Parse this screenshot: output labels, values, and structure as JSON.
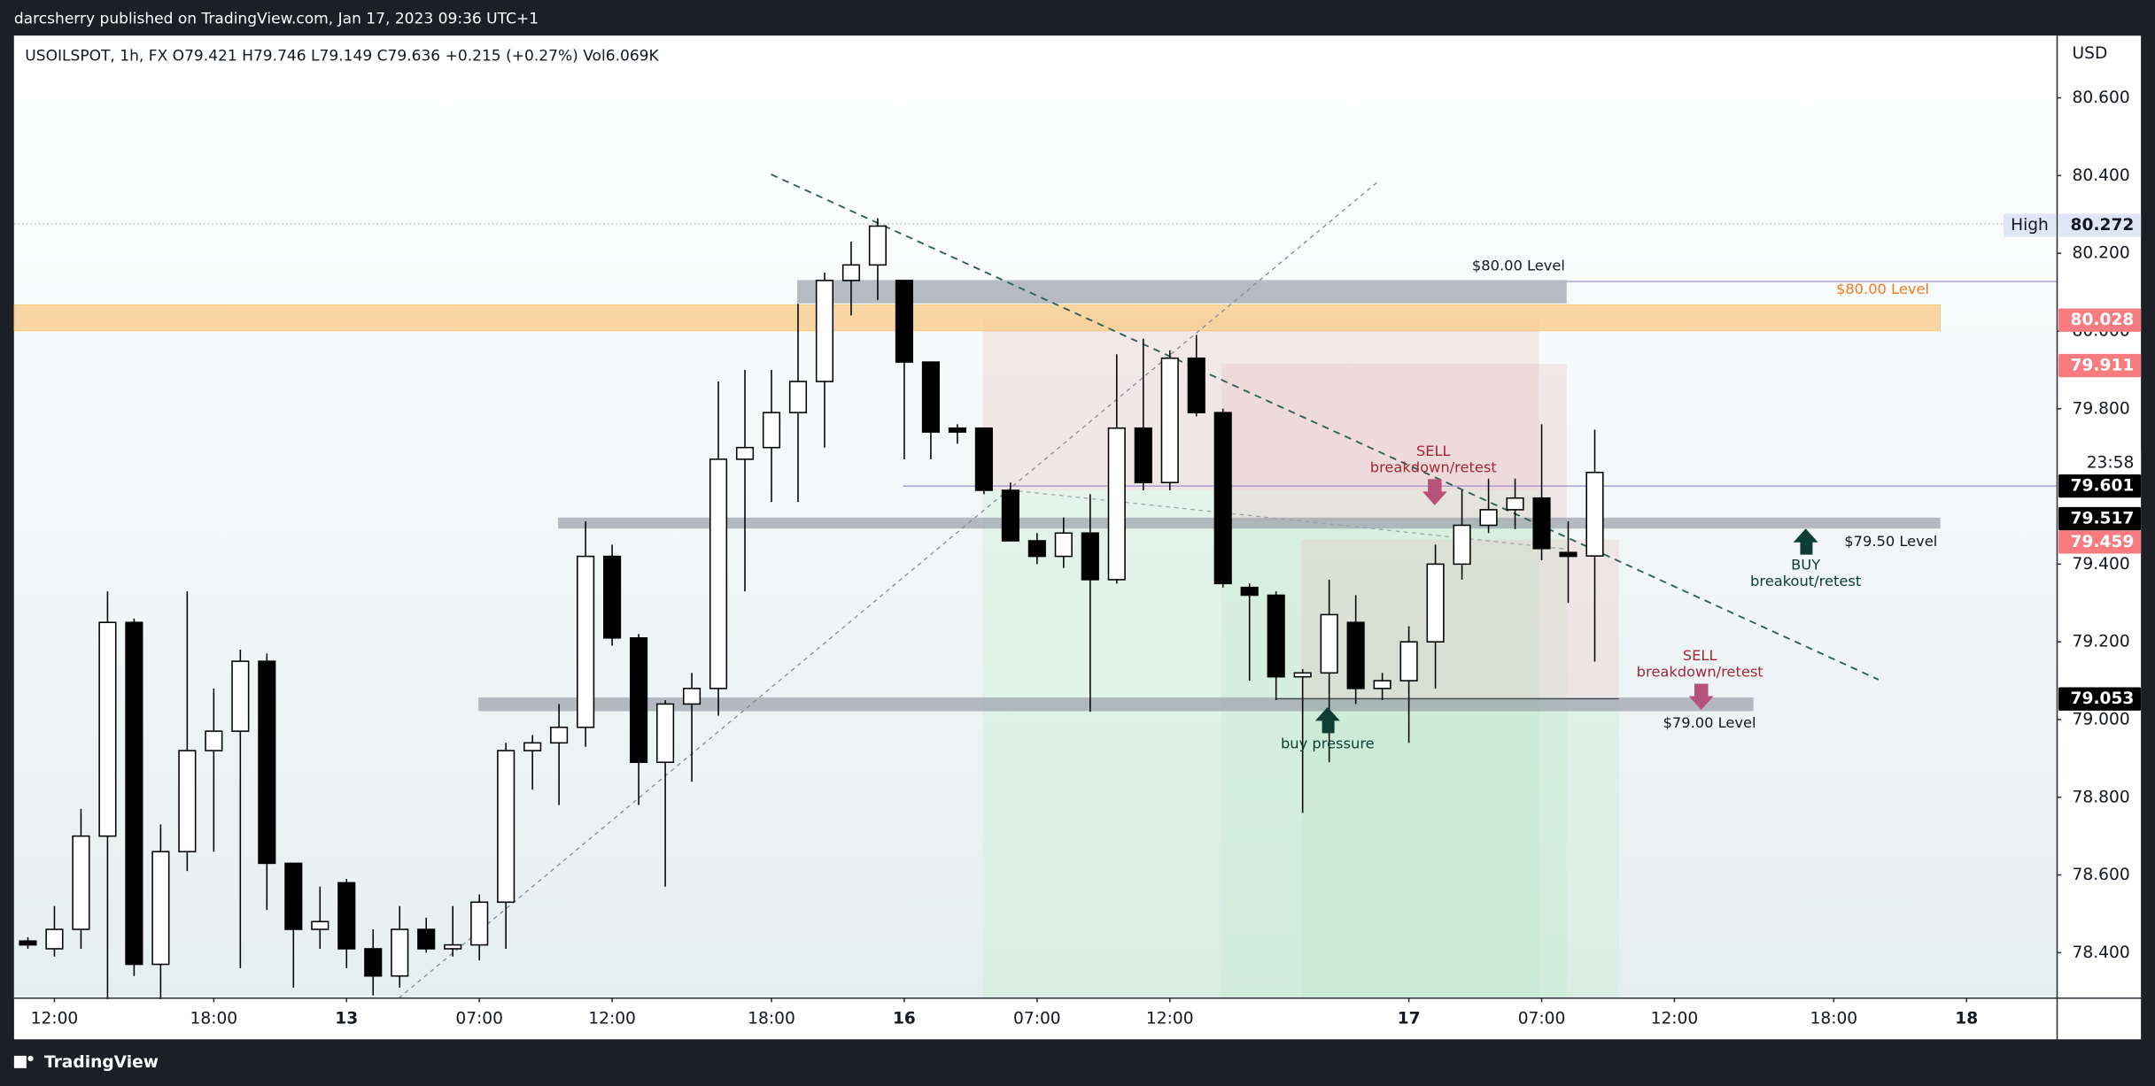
{
  "header": {
    "text": "darcsherry published on TradingView.com, Jan 17, 2023 09:36 UTC+1"
  },
  "legend": {
    "text": "USOILSPOT, 1h, FX  O79.421 H79.746 L79.149 C79.636 +0.215 (+0.27%) Vol6.069K"
  },
  "footer": {
    "brand": "TradingView"
  },
  "chart_data": {
    "type": "candlestick",
    "ylabel": "USD",
    "open": [
      78.43,
      78.41,
      78.46,
      78.7,
      79.25,
      78.37,
      78.66,
      78.92,
      78.97,
      79.15,
      78.63,
      78.46,
      78.58,
      78.41,
      78.34,
      78.46,
      78.41,
      78.42,
      78.53,
      78.92,
      78.94,
      78.98,
      79.42,
      79.21,
      78.89,
      79.04,
      79.08,
      79.67,
      79.7,
      79.79,
      79.87,
      80.13,
      80.17,
      80.13,
      79.92,
      79.75,
      79.75,
      79.59,
      79.46,
      79.42,
      79.48,
      79.36,
      79.75,
      79.61,
      79.93,
      79.79,
      79.34,
      79.32,
      79.11,
      79.12,
      79.25,
      79.08,
      79.1,
      79.2,
      79.4,
      79.5,
      79.54,
      79.57,
      79.43,
      79.421
    ],
    "high": [
      78.44,
      78.52,
      78.77,
      79.33,
      79.26,
      78.73,
      79.33,
      79.08,
      79.18,
      79.17,
      78.63,
      78.57,
      78.59,
      78.46,
      78.52,
      78.49,
      78.52,
      78.55,
      78.94,
      78.96,
      79.04,
      79.51,
      79.45,
      79.22,
      79.05,
      79.12,
      79.87,
      79.9,
      79.9,
      80.07,
      80.15,
      80.23,
      80.29,
      80.13,
      79.92,
      79.76,
      79.75,
      79.61,
      79.48,
      79.52,
      79.58,
      79.94,
      79.98,
      79.95,
      79.99,
      79.8,
      79.35,
      79.33,
      79.13,
      79.36,
      79.32,
      79.12,
      79.24,
      79.45,
      79.59,
      79.62,
      79.62,
      79.76,
      79.51,
      79.746
    ],
    "low": [
      78.41,
      78.39,
      78.41,
      78.28,
      78.34,
      78.28,
      78.61,
      78.66,
      78.36,
      78.51,
      78.31,
      78.41,
      78.36,
      78.29,
      78.31,
      78.4,
      78.39,
      78.38,
      78.41,
      78.82,
      78.78,
      78.93,
      79.19,
      78.78,
      78.57,
      78.84,
      79.01,
      79.33,
      79.56,
      79.56,
      79.7,
      80.04,
      80.08,
      79.67,
      79.67,
      79.71,
      79.58,
      79.46,
      79.4,
      79.39,
      79.02,
      79.35,
      79.59,
      79.59,
      79.78,
      79.34,
      79.1,
      79.05,
      78.76,
      78.89,
      79.04,
      79.05,
      78.94,
      79.08,
      79.36,
      79.48,
      79.49,
      79.41,
      79.3,
      79.149
    ],
    "close": [
      78.42,
      78.46,
      78.7,
      79.25,
      78.37,
      78.66,
      78.92,
      78.97,
      79.15,
      78.63,
      78.46,
      78.48,
      78.41,
      78.34,
      78.46,
      78.41,
      78.42,
      78.53,
      78.92,
      78.94,
      78.98,
      79.42,
      79.21,
      78.89,
      79.04,
      79.08,
      79.67,
      79.7,
      79.79,
      79.87,
      80.13,
      80.17,
      80.27,
      79.92,
      79.74,
      79.74,
      79.59,
      79.46,
      79.42,
      79.48,
      79.36,
      79.75,
      79.61,
      79.93,
      79.79,
      79.35,
      79.32,
      79.11,
      79.12,
      79.27,
      79.08,
      79.1,
      79.2,
      79.4,
      79.5,
      79.54,
      79.57,
      79.44,
      79.42,
      79.636
    ],
    "up_color": "#ffffff",
    "down_color": "#000000",
    "xlim": [
      -0.52,
      76.41
    ],
    "xticks": [
      {
        "value": 1,
        "label": "12:00"
      },
      {
        "value": 7,
        "label": "18:00"
      },
      {
        "value": 12,
        "label": "13"
      },
      {
        "value": 17,
        "label": "07:00"
      },
      {
        "value": 22,
        "label": "12:00"
      },
      {
        "value": 28,
        "label": "18:00"
      },
      {
        "value": 33,
        "label": "16"
      },
      {
        "value": 38,
        "label": "07:00"
      },
      {
        "value": 43,
        "label": "12:00"
      },
      {
        "value": 52,
        "label": "17"
      },
      {
        "value": 57,
        "label": "07:00"
      },
      {
        "value": 62,
        "label": "12:00"
      },
      {
        "value": 68,
        "label": "18:00"
      },
      {
        "value": 73,
        "label": "18"
      }
    ],
    "ylim": [
      78.283,
      80.76
    ],
    "yticks": [
      {
        "value": 78.4,
        "label": "78.400"
      },
      {
        "value": 78.6,
        "label": "78.600"
      },
      {
        "value": 78.8,
        "label": "78.800"
      },
      {
        "value": 79,
        "label": "79.000"
      },
      {
        "value": 79.2,
        "label": "79.200"
      },
      {
        "value": 79.4,
        "label": "79.400"
      },
      {
        "value": 79.8,
        "label": "79.800"
      },
      {
        "value": 80,
        "label": "80.000"
      },
      {
        "value": 80.2,
        "label": "80.200"
      },
      {
        "value": 80.4,
        "label": "80.400"
      },
      {
        "value": 80.6,
        "label": "80.600"
      }
    ],
    "price_tags": [
      {
        "name": "High",
        "value": 80.272,
        "color": "#dfe6f5",
        "text_color": "#131722"
      },
      {
        "value": 80.028,
        "color": "#f77c80",
        "text_color": "#ffffff"
      },
      {
        "value": 79.911,
        "color": "#f77c80",
        "text_color": "#ffffff"
      },
      {
        "value": 79.601,
        "color": "#000000",
        "text_color": "#ffffff",
        "countdown": "23:58"
      },
      {
        "value": 79.517,
        "color": "#000000",
        "text_color": "#ffffff"
      },
      {
        "value": 79.459,
        "color": "#f77c80",
        "text_color": "#ffffff"
      },
      {
        "value": 79.053,
        "color": "#000000",
        "text_color": "#ffffff"
      }
    ],
    "annotations": [
      "$80.00 Level",
      "$80.00 Level",
      "SELL",
      "breakdown/retest",
      "$79.50 Level",
      "BUY",
      "breakout/retest",
      "SELL",
      "breakdown/retest",
      "$79.00 Level",
      "buy pressure"
    ]
  }
}
